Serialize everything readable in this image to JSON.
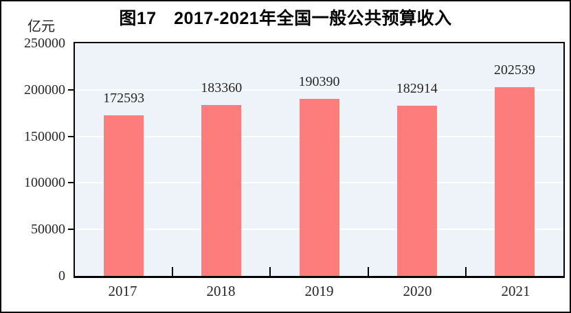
{
  "figure": {
    "title": "图17　2017-2021年全国一般公共预算收入",
    "unit_label": "亿元"
  },
  "chart_data": {
    "type": "bar",
    "title": "图17　2017-2021年全国一般公共预算收入",
    "unit_label": "亿元",
    "categories": [
      "2017",
      "2018",
      "2019",
      "2020",
      "2021"
    ],
    "values": [
      172593,
      183360,
      190390,
      182914,
      202539
    ],
    "value_labels": [
      "172593",
      "183360",
      "190390",
      "182914",
      "202539"
    ],
    "xlabel": "",
    "ylabel": "亿元",
    "ylim": [
      0,
      250000
    ],
    "yticks": [
      0,
      50000,
      100000,
      150000,
      200000,
      250000
    ],
    "grid": "horizontal",
    "legend_position": "none",
    "colors": {
      "bar": "#FD7C7C",
      "plot_background": "#EDF3F8",
      "gridline": "#FFFFFF",
      "axis": "#000000",
      "text": "#262626"
    }
  }
}
